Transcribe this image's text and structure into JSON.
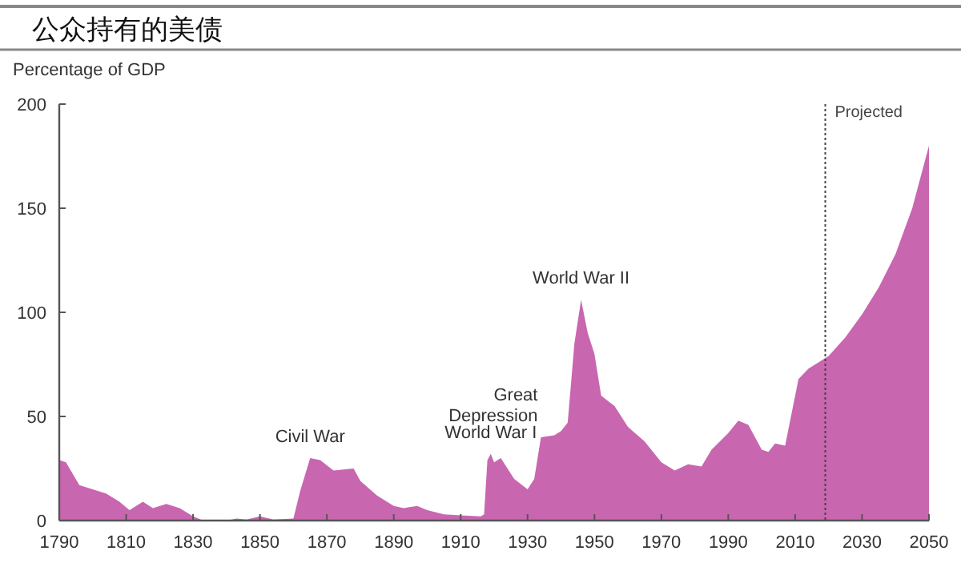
{
  "chart_data": {
    "type": "area",
    "title": "公众持有的美债",
    "ylabel": "Percentage of GDP",
    "x": [
      1790,
      1792,
      1796,
      1800,
      1804,
      1808,
      1811,
      1815,
      1818,
      1822,
      1826,
      1830,
      1833,
      1840,
      1843,
      1846,
      1850,
      1854,
      1860,
      1862,
      1865,
      1868,
      1872,
      1878,
      1880,
      1885,
      1890,
      1893,
      1897,
      1900,
      1905,
      1910,
      1916,
      1917,
      1918,
      1919,
      1920,
      1922,
      1926,
      1930,
      1932,
      1934,
      1938,
      1940,
      1942,
      1944,
      1946,
      1948,
      1950,
      1952,
      1956,
      1960,
      1965,
      1970,
      1974,
      1978,
      1982,
      1985,
      1990,
      1993,
      1996,
      2000,
      2002,
      2004,
      2007,
      2009,
      2011,
      2014,
      2017,
      2020,
      2025,
      2030,
      2035,
      2040,
      2045,
      2050
    ],
    "series": [
      {
        "color": "#c966b0",
        "values": [
          29,
          28,
          17,
          15,
          13,
          9,
          5,
          9,
          6,
          8,
          6,
          2,
          0,
          0,
          1,
          0.5,
          2,
          0.5,
          1,
          14,
          30,
          29,
          24,
          25,
          19,
          12,
          7,
          6,
          7,
          5,
          3,
          2.5,
          2,
          3,
          29,
          32,
          28,
          30,
          20,
          15,
          20,
          40,
          41,
          43,
          47,
          85,
          106,
          90,
          80,
          60,
          55,
          45,
          38,
          28,
          24,
          27,
          26,
          34,
          42,
          48,
          46,
          34,
          33,
          37,
          36,
          52,
          68,
          73,
          76,
          79,
          88,
          99,
          112,
          128,
          150,
          180
        ]
      }
    ],
    "xlim": [
      1790,
      2050
    ],
    "ylim": [
      0,
      200
    ],
    "xticks": [
      1790,
      1810,
      1830,
      1850,
      1870,
      1890,
      1910,
      1930,
      1950,
      1970,
      1990,
      2010,
      2030,
      2050
    ],
    "yticks": [
      0,
      50,
      100,
      150,
      200
    ],
    "ref_lines": [
      {
        "axis": "x",
        "value": 2019,
        "label": "Projected",
        "line_style": "dotted",
        "color": "#444444"
      }
    ],
    "annotations": [
      {
        "text": "Civil War",
        "x": 1865,
        "y": 30
      },
      {
        "text": "World War I",
        "x": 1919,
        "y": 32
      },
      {
        "text": "Great Depression",
        "x": 1934,
        "y": 40
      },
      {
        "text": "World War II",
        "x": 1946,
        "y": 106
      }
    ],
    "grid": false
  }
}
